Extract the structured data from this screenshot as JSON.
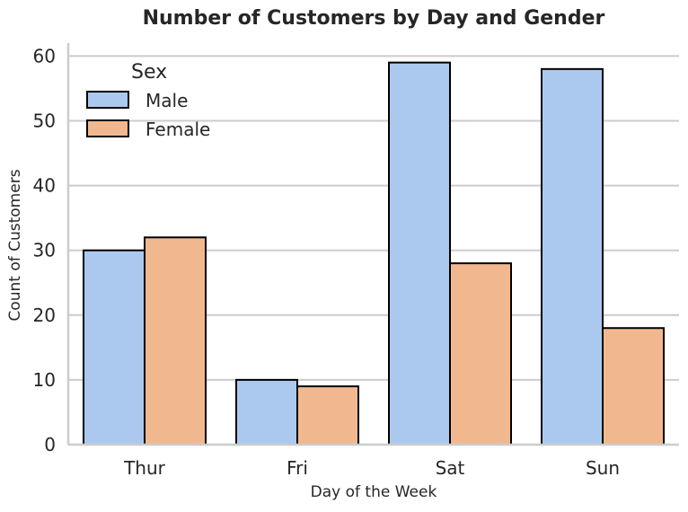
{
  "chart_data": {
    "type": "bar",
    "title": "Number of Customers by Day and Gender",
    "xlabel": "Day of the Week",
    "ylabel": "Count of Customers",
    "categories": [
      "Thur",
      "Fri",
      "Sat",
      "Sun"
    ],
    "series": [
      {
        "name": "Male",
        "values": [
          30,
          10,
          59,
          58
        ],
        "color": "#abc9ee"
      },
      {
        "name": "Female",
        "values": [
          32,
          9,
          28,
          18
        ],
        "color": "#f1b890"
      }
    ],
    "ylim": [
      0,
      62
    ],
    "yticks": [
      0,
      10,
      20,
      30,
      40,
      50,
      60
    ],
    "grid": "horizontal",
    "legend": {
      "title": "Sex",
      "placement": "top-left"
    },
    "colors": {
      "gridline": "#cccccc",
      "spine": "#cccccc",
      "bar_edge": "#000000",
      "text": "#262626"
    }
  }
}
